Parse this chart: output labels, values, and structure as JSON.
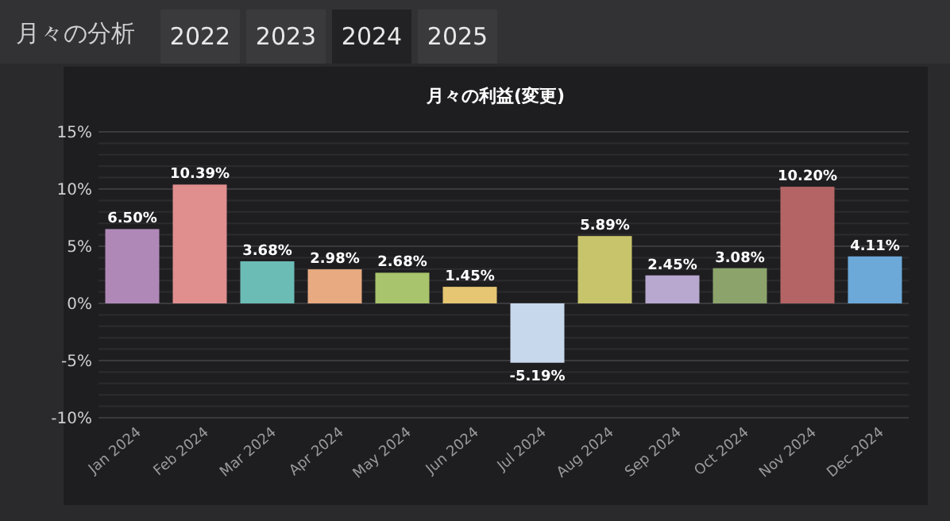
{
  "chart_data": {
    "type": "bar",
    "title": "月々の利益(変更)",
    "categories": [
      "Jan 2024",
      "Feb 2024",
      "Mar 2024",
      "Apr 2024",
      "May 2024",
      "Jun 2024",
      "Jul 2024",
      "Aug 2024",
      "Sep 2024",
      "Oct 2024",
      "Nov 2024",
      "Dec 2024"
    ],
    "values": [
      6.5,
      10.39,
      3.68,
      2.98,
      2.68,
      1.45,
      -5.19,
      5.89,
      2.45,
      3.08,
      10.2,
      4.11
    ],
    "colors": [
      "#b088b8",
      "#e08e8e",
      "#6cbcb6",
      "#e8aa80",
      "#a8c46c",
      "#e6c672",
      "#c8d8ec",
      "#c8c46c",
      "#b8a8d0",
      "#8ca46c",
      "#b46464",
      "#6ca8d8"
    ],
    "value_labels": [
      "6.50%",
      "10.39%",
      "3.68%",
      "2.98%",
      "2.68%",
      "1.45%",
      "-5.19%",
      "5.89%",
      "2.45%",
      "3.08%",
      "10.20%",
      "4.11%"
    ],
    "ylim": [
      -10,
      15
    ],
    "yticks": [
      {
        "value": -10,
        "label": "-10%"
      },
      {
        "value": -9,
        "label": null
      },
      {
        "value": -8,
        "label": null
      },
      {
        "value": -7,
        "label": null
      },
      {
        "value": -6,
        "label": null
      },
      {
        "value": -5,
        "label": "-5%"
      },
      {
        "value": -4,
        "label": null
      },
      {
        "value": -3,
        "label": null
      },
      {
        "value": -2,
        "label": null
      },
      {
        "value": -1,
        "label": null
      },
      {
        "value": 0,
        "label": "0%"
      },
      {
        "value": 1,
        "label": null
      },
      {
        "value": 2,
        "label": null
      },
      {
        "value": 3,
        "label": null
      },
      {
        "value": 4,
        "label": null
      },
      {
        "value": 5,
        "label": "5%"
      },
      {
        "value": 6,
        "label": null
      },
      {
        "value": 7,
        "label": null
      },
      {
        "value": 8,
        "label": null
      },
      {
        "value": 9,
        "label": null
      },
      {
        "value": 10,
        "label": "10%"
      },
      {
        "value": 11,
        "label": null
      },
      {
        "value": 12,
        "label": null
      },
      {
        "value": 13,
        "label": null
      },
      {
        "value": 14,
        "label": null
      },
      {
        "value": 15,
        "label": "15%"
      }
    ],
    "grid": "y",
    "annotations": [
      "月々の分析",
      "2022",
      "2023",
      "2024",
      "2025"
    ]
  }
}
